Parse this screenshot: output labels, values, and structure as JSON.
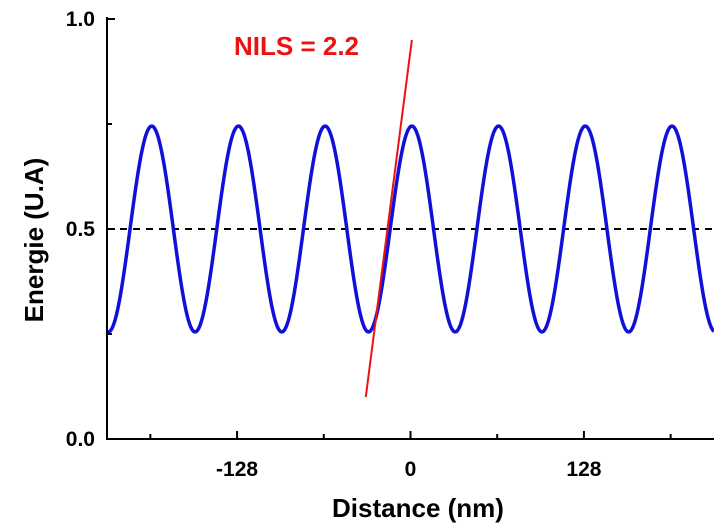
{
  "chart_data": {
    "type": "line",
    "title": "",
    "xlabel": "Distance (nm)",
    "ylabel": "Energie (U.A)",
    "xlim": [
      -224,
      224
    ],
    "ylim": [
      0.0,
      1.0
    ],
    "x_ticks": [
      -128,
      0,
      128
    ],
    "x_tick_labels": [
      "-128",
      "0",
      "128"
    ],
    "y_ticks": [
      0.0,
      0.5,
      1.0
    ],
    "y_tick_labels": [
      "0.0",
      "0.5",
      "1.0"
    ],
    "grid": false,
    "series": [
      {
        "style": "solid",
        "color": "#1010d8",
        "function": "0.5 + 0.245*cos(2*pi*(x-1)/64)",
        "mean": 0.5,
        "amplitude": 0.245,
        "period": 64,
        "peak_x": [
          -191,
          -127,
          -63,
          1,
          65,
          129,
          193
        ],
        "trough_x": [
          -223,
          -159,
          -95,
          -31,
          33,
          97,
          161,
          225
        ]
      },
      {
        "style": "dashed",
        "color": "#000000",
        "x": [
          -224,
          224
        ],
        "y": [
          0.5,
          0.5
        ]
      },
      {
        "style": "solid",
        "color": "#ee1111",
        "x": [
          -33,
          1
        ],
        "y": [
          0.1,
          0.95
        ]
      }
    ],
    "annotations": [
      {
        "text": "NILS = 2.2",
        "color": "#ee1111",
        "near": "top-center"
      }
    ]
  }
}
